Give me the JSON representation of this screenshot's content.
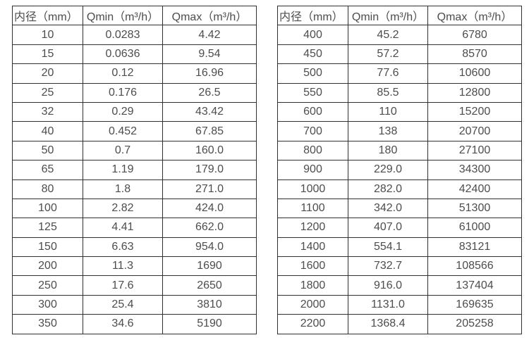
{
  "colors": {
    "background": "#ffffff",
    "border": "#303030",
    "text": "#4d4d4d"
  },
  "chart_data": [
    {
      "type": "table",
      "title": "",
      "headers": [
        "内径（mm）",
        "Qmin（m³/h）",
        "Qmax（m³/h）"
      ],
      "rows": [
        [
          "10",
          "0.0283",
          "4.42"
        ],
        [
          "15",
          "0.0636",
          "9.54"
        ],
        [
          "20",
          "0.12",
          "16.96"
        ],
        [
          "25",
          "0.176",
          "26.5"
        ],
        [
          "32",
          "0.29",
          "43.42"
        ],
        [
          "40",
          "0.452",
          "67.85"
        ],
        [
          "50",
          "0.7",
          "160.0"
        ],
        [
          "65",
          "1.19",
          "179.0"
        ],
        [
          "80",
          "1.8",
          "271.0"
        ],
        [
          "100",
          "2.82",
          "424.0"
        ],
        [
          "125",
          "4.41",
          "662.0"
        ],
        [
          "150",
          "6.63",
          "954.0"
        ],
        [
          "200",
          "11.3",
          "1690"
        ],
        [
          "250",
          "17.6",
          "2650"
        ],
        [
          "300",
          "25.4",
          "3810"
        ],
        [
          "350",
          "34.6",
          "5190"
        ]
      ]
    },
    {
      "type": "table",
      "title": "",
      "headers": [
        "内径（mm）",
        "Qmin（m³/h）",
        "Qmax（m³/h）"
      ],
      "rows": [
        [
          "400",
          "45.2",
          "6780"
        ],
        [
          "450",
          "57.2",
          "8570"
        ],
        [
          "500",
          "77.6",
          "10600"
        ],
        [
          "550",
          "85.5",
          "12800"
        ],
        [
          "600",
          "110",
          "15200"
        ],
        [
          "700",
          "138",
          "20700"
        ],
        [
          "800",
          "180",
          "27100"
        ],
        [
          "900",
          "229.0",
          "34300"
        ],
        [
          "1000",
          "282.0",
          "42400"
        ],
        [
          "1100",
          "342.0",
          "51300"
        ],
        [
          "1200",
          "407.0",
          "61000"
        ],
        [
          "1400",
          "554.1",
          "83121"
        ],
        [
          "1600",
          "732.7",
          "108566"
        ],
        [
          "1800",
          "916.0",
          "137404"
        ],
        [
          "2000",
          "1131.0",
          "169635"
        ],
        [
          "2200",
          "1368.4",
          "205258"
        ]
      ]
    }
  ]
}
